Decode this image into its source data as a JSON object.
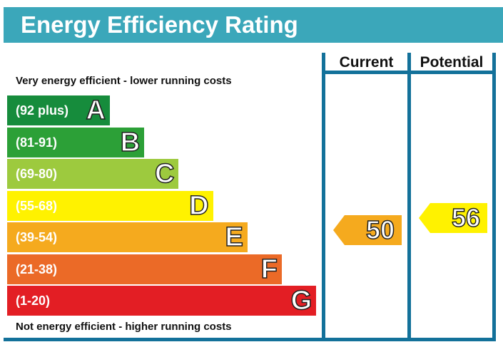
{
  "chart_data": {
    "type": "bar",
    "title": "Energy Efficiency Rating",
    "columns": [
      "Current",
      "Potential"
    ],
    "top_note": "Very energy efficient - lower running costs",
    "bottom_note": "Not energy efficient - higher running costs",
    "bands": [
      {
        "letter": "A",
        "range": "(92 plus)",
        "color": "#168c3c"
      },
      {
        "letter": "B",
        "range": "(81-91)",
        "color": "#2ca037"
      },
      {
        "letter": "C",
        "range": "(69-80)",
        "color": "#9dca3e"
      },
      {
        "letter": "D",
        "range": "(55-68)",
        "color": "#fff200"
      },
      {
        "letter": "E",
        "range": "(39-54)",
        "color": "#f5aa1e"
      },
      {
        "letter": "F",
        "range": "(21-38)",
        "color": "#eb6a27"
      },
      {
        "letter": "G",
        "range": "(1-20)",
        "color": "#e31e24"
      }
    ],
    "current": {
      "value": 50,
      "band": "E",
      "color": "#f5aa1e"
    },
    "potential": {
      "value": 56,
      "band": "D",
      "color": "#fff200"
    }
  }
}
